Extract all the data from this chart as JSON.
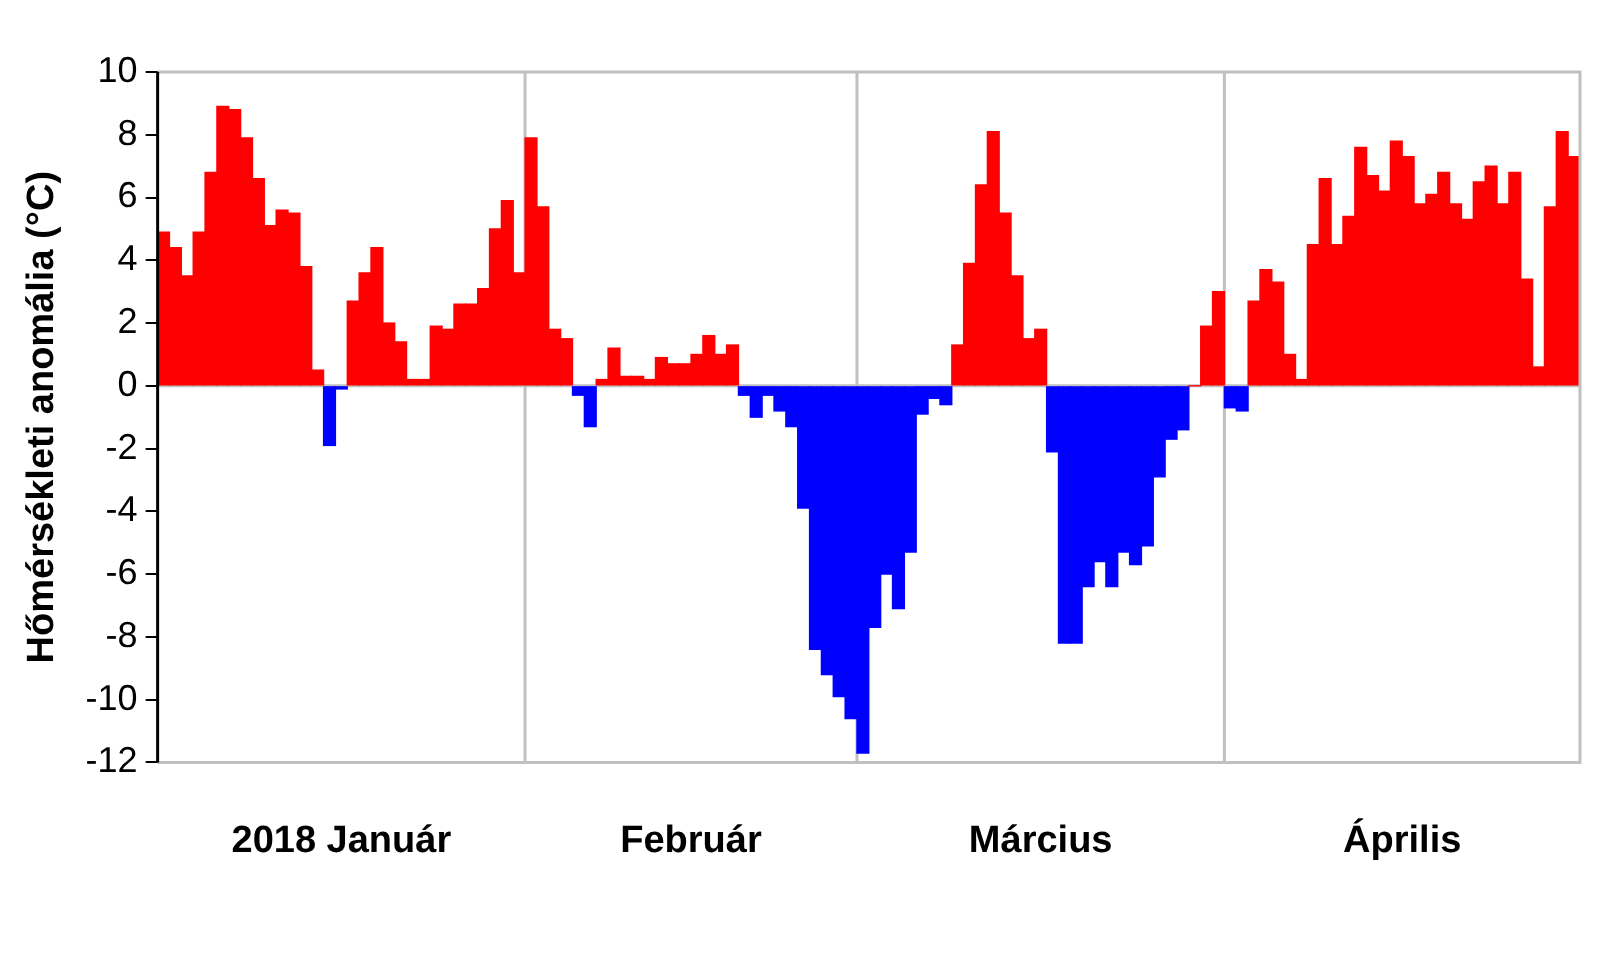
{
  "chart_data": {
    "type": "bar",
    "ylabel": "Hőmérsékleti anomália (°C)",
    "x": [
      "2018-01-01",
      "2018-01-02",
      "2018-01-03",
      "2018-01-04",
      "2018-01-05",
      "2018-01-06",
      "2018-01-07",
      "2018-01-08",
      "2018-01-09",
      "2018-01-10",
      "2018-01-11",
      "2018-01-12",
      "2018-01-13",
      "2018-01-14",
      "2018-01-15",
      "2018-01-16",
      "2018-01-17",
      "2018-01-18",
      "2018-01-19",
      "2018-01-20",
      "2018-01-21",
      "2018-01-22",
      "2018-01-23",
      "2018-01-24",
      "2018-01-25",
      "2018-01-26",
      "2018-01-27",
      "2018-01-28",
      "2018-01-29",
      "2018-01-30",
      "2018-01-31",
      "2018-02-01",
      "2018-02-02",
      "2018-02-03",
      "2018-02-04",
      "2018-02-05",
      "2018-02-06",
      "2018-02-07",
      "2018-02-08",
      "2018-02-09",
      "2018-02-10",
      "2018-02-11",
      "2018-02-12",
      "2018-02-13",
      "2018-02-14",
      "2018-02-15",
      "2018-02-16",
      "2018-02-17",
      "2018-02-18",
      "2018-02-19",
      "2018-02-20",
      "2018-02-21",
      "2018-02-22",
      "2018-02-23",
      "2018-02-24",
      "2018-02-25",
      "2018-02-26",
      "2018-02-27",
      "2018-02-28",
      "2018-03-01",
      "2018-03-02",
      "2018-03-03",
      "2018-03-04",
      "2018-03-05",
      "2018-03-06",
      "2018-03-07",
      "2018-03-08",
      "2018-03-09",
      "2018-03-10",
      "2018-03-11",
      "2018-03-12",
      "2018-03-13",
      "2018-03-14",
      "2018-03-15",
      "2018-03-16",
      "2018-03-17",
      "2018-03-18",
      "2018-03-19",
      "2018-03-20",
      "2018-03-21",
      "2018-03-22",
      "2018-03-23",
      "2018-03-24",
      "2018-03-25",
      "2018-03-26",
      "2018-03-27",
      "2018-03-28",
      "2018-03-29",
      "2018-03-30",
      "2018-03-31",
      "2018-04-01",
      "2018-04-02",
      "2018-04-03",
      "2018-04-04",
      "2018-04-05",
      "2018-04-06",
      "2018-04-07",
      "2018-04-08",
      "2018-04-09",
      "2018-04-10",
      "2018-04-11",
      "2018-04-12",
      "2018-04-13",
      "2018-04-14",
      "2018-04-15",
      "2018-04-16",
      "2018-04-17",
      "2018-04-18",
      "2018-04-19",
      "2018-04-20",
      "2018-04-21",
      "2018-04-22",
      "2018-04-23",
      "2018-04-24",
      "2018-04-25",
      "2018-04-26",
      "2018-04-27",
      "2018-04-28",
      "2018-04-29",
      "2018-04-30"
    ],
    "values": [
      4.9,
      4.4,
      3.5,
      4.9,
      6.8,
      8.9,
      8.8,
      7.9,
      6.6,
      5.1,
      5.6,
      5.5,
      3.8,
      0.5,
      -1.9,
      -0.1,
      2.7,
      3.6,
      4.4,
      2.0,
      1.4,
      0.2,
      0.2,
      1.9,
      1.8,
      2.6,
      2.6,
      3.1,
      5.0,
      5.9,
      3.6,
      7.9,
      5.7,
      1.8,
      1.5,
      -0.3,
      -1.3,
      0.2,
      1.2,
      0.3,
      0.3,
      0.2,
      0.9,
      0.7,
      0.7,
      1.0,
      1.6,
      1.0,
      1.3,
      -0.3,
      -1.0,
      -0.3,
      -0.8,
      -1.3,
      -3.9,
      -8.4,
      -9.2,
      -9.9,
      -10.6,
      -11.7,
      -7.7,
      -6.0,
      -7.1,
      -5.3,
      -0.9,
      -0.4,
      -0.6,
      1.3,
      3.9,
      6.4,
      8.1,
      5.5,
      3.5,
      1.5,
      1.8,
      -2.1,
      -8.2,
      -8.2,
      -6.4,
      -5.6,
      -6.4,
      -5.3,
      -5.7,
      -5.1,
      -2.9,
      -1.7,
      -1.4,
      0,
      1.9,
      3.0,
      -0.7,
      -0.8,
      2.7,
      3.7,
      3.3,
      1.0,
      0.2,
      4.5,
      6.6,
      4.5,
      5.4,
      7.6,
      6.7,
      6.2,
      7.8,
      7.3,
      5.8,
      6.1,
      6.8,
      5.8,
      5.3,
      6.5,
      7.0,
      5.8,
      6.8,
      3.4,
      0.6,
      5.7,
      8.1,
      7.3
    ],
    "colors": [
      "#ff0000",
      "#ff0000",
      "#ff0000",
      "#ff0000",
      "#ff0000",
      "#ff0000",
      "#ff0000",
      "#ff0000",
      "#ff0000",
      "#ff0000",
      "#ff0000",
      "#ff0000",
      "#ff0000",
      "#ff0000",
      "#0000ff",
      "#0000ff",
      "#ff0000",
      "#ff0000",
      "#ff0000",
      "#ff0000",
      "#ff0000",
      "#ff0000",
      "#ff0000",
      "#ff0000",
      "#ff0000",
      "#ff0000",
      "#ff0000",
      "#ff0000",
      "#ff0000",
      "#ff0000",
      "#ff0000",
      "#ff0000",
      "#ff0000",
      "#ff0000",
      "#ff0000",
      "#0000ff",
      "#0000ff",
      "#ff0000",
      "#ff0000",
      "#ff0000",
      "#ff0000",
      "#ff0000",
      "#ff0000",
      "#ff0000",
      "#ff0000",
      "#ff0000",
      "#ff0000",
      "#ff0000",
      "#ff0000",
      "#0000ff",
      "#0000ff",
      "#0000ff",
      "#0000ff",
      "#0000ff",
      "#0000ff",
      "#0000ff",
      "#0000ff",
      "#0000ff",
      "#0000ff",
      "#0000ff",
      "#0000ff",
      "#0000ff",
      "#0000ff",
      "#0000ff",
      "#0000ff",
      "#0000ff",
      "#0000ff",
      "#ff0000",
      "#ff0000",
      "#ff0000",
      "#ff0000",
      "#ff0000",
      "#ff0000",
      "#ff0000",
      "#ff0000",
      "#0000ff",
      "#0000ff",
      "#0000ff",
      "#0000ff",
      "#0000ff",
      "#0000ff",
      "#0000ff",
      "#0000ff",
      "#0000ff",
      "#0000ff",
      "#0000ff",
      "#0000ff",
      "#ff0000",
      "#ff0000",
      "#ff0000",
      "#0000ff",
      "#0000ff",
      "#ff0000",
      "#ff0000",
      "#ff0000",
      "#ff0000",
      "#ff0000",
      "#ff0000",
      "#ff0000",
      "#ff0000",
      "#ff0000",
      "#ff0000",
      "#ff0000",
      "#ff0000",
      "#ff0000",
      "#ff0000",
      "#ff0000",
      "#ff0000",
      "#ff0000",
      "#ff0000",
      "#ff0000",
      "#ff0000",
      "#ff0000",
      "#ff0000",
      "#ff0000",
      "#ff0000",
      "#ff0000",
      "#ff0000",
      "#ff0000",
      "#ff0000"
    ],
    "xlim": [
      "2017-12-31T12:00",
      "2018-04-30T12:00"
    ],
    "xticks": [
      {
        "value": "2018-01-16",
        "label": "2018 Január"
      },
      {
        "value": "2018-02-14T12:00",
        "label": "Február"
      },
      {
        "value": "2018-03-16",
        "label": "Március"
      },
      {
        "value": "2018-04-15T12:00",
        "label": "Április"
      }
    ],
    "ylim": [
      -12,
      10
    ],
    "yticks": [
      -12,
      -10,
      -8,
      -6,
      -4,
      -2,
      0,
      2,
      4,
      6,
      8,
      10
    ],
    "ref_lines": [
      {
        "axis": "x",
        "value": "2018-01-31T12:00",
        "color": "#c0c0c0"
      },
      {
        "axis": "x",
        "value": "2018-02-28T12:00",
        "color": "#c0c0c0"
      },
      {
        "axis": "x",
        "value": "2018-03-31T12:00",
        "color": "#c0c0c0"
      },
      {
        "axis": "y",
        "value": 0,
        "color": "#c0c0c0"
      }
    ],
    "grid": false,
    "legend": false
  }
}
